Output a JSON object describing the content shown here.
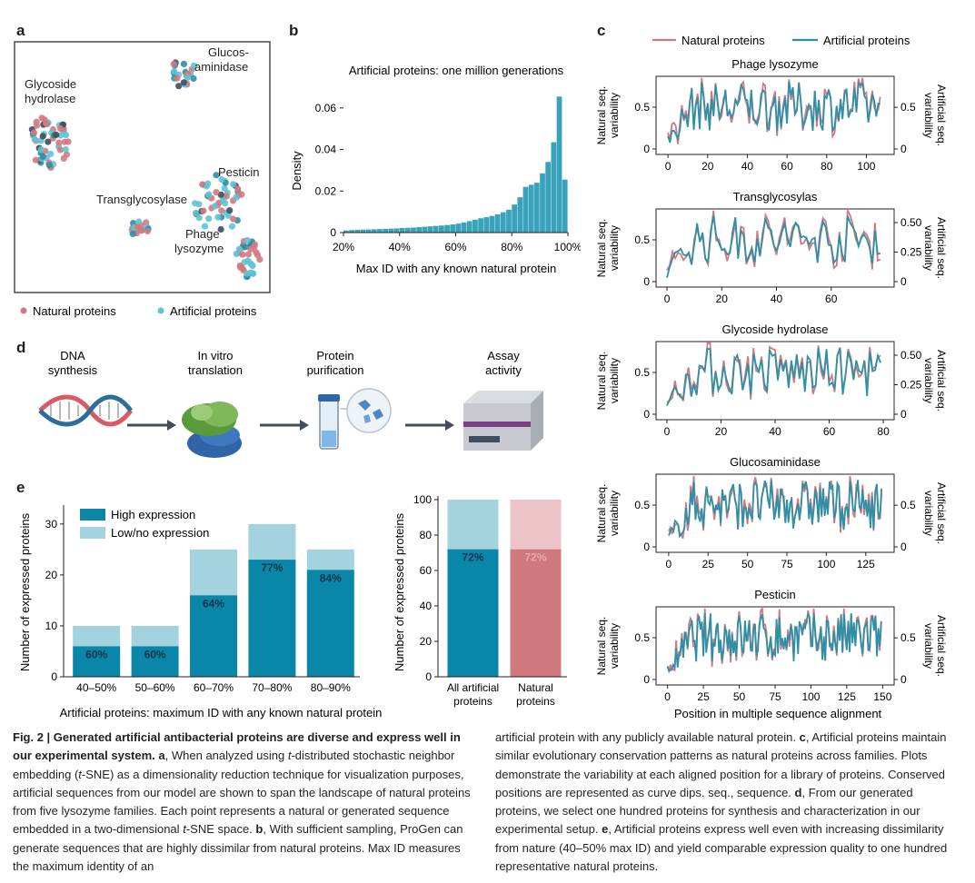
{
  "colors": {
    "natural": "#d07a80",
    "artificial": "#2f8fa6",
    "artificial_light": "#5fc3d3",
    "high": "#0a86a8",
    "low": "#a3d3df",
    "nat_high": "#d07a7f",
    "nat_low": "#ecc3c6",
    "dark": "#3f4d5e",
    "hist": "#3aa3bc"
  },
  "panels": {
    "a": "a",
    "b": "b",
    "c": "c",
    "d": "d",
    "e": "e"
  },
  "panel_a": {
    "clusters": [
      "Glucos-\naminidase",
      "Glycoside\nhydrolase",
      "Pesticin",
      "Transglycosylase",
      "Phage\nlysozyme"
    ],
    "legend_natural": "Natural proteins",
    "legend_artificial": "Artificial proteins"
  },
  "panel_d": {
    "steps": [
      {
        "label": "DNA\nsynthesis",
        "icon": "dna-icon"
      },
      {
        "label": "In vitro\ntranslation",
        "icon": "protein-icon"
      },
      {
        "label": "Protein\npurification",
        "icon": "tube-icon"
      },
      {
        "label": "Assay\nactivity",
        "icon": "plate-reader-icon"
      }
    ]
  },
  "chart_data": [
    {
      "id": "b",
      "type": "bar",
      "title": "Artificial proteins: one million generations",
      "xlabel": "Max ID with any known natural protein",
      "ylabel": "Density",
      "xlim": [
        20,
        100
      ],
      "ylim": [
        0,
        0.07
      ],
      "xticks": [
        "20%",
        "40%",
        "60%",
        "80%",
        "100%"
      ],
      "yticks": [
        "0",
        "0.02",
        "0.04",
        "0.06"
      ],
      "bin_width": 2,
      "bin_starts": [
        20,
        22,
        24,
        26,
        28,
        30,
        32,
        34,
        36,
        38,
        40,
        42,
        44,
        46,
        48,
        50,
        52,
        54,
        56,
        58,
        60,
        62,
        64,
        66,
        68,
        70,
        72,
        74,
        76,
        78,
        80,
        82,
        84,
        86,
        88,
        90,
        92,
        94,
        96,
        98
      ],
      "values": [
        0.001,
        0.0012,
        0.0013,
        0.0014,
        0.0015,
        0.0016,
        0.0017,
        0.0018,
        0.0019,
        0.002,
        0.0022,
        0.0023,
        0.0024,
        0.0026,
        0.0028,
        0.003,
        0.0032,
        0.0034,
        0.0036,
        0.0039,
        0.0043,
        0.0048,
        0.0055,
        0.0062,
        0.0069,
        0.0074,
        0.008,
        0.0088,
        0.0098,
        0.011,
        0.0135,
        0.017,
        0.022,
        0.023,
        0.024,
        0.0285,
        0.034,
        0.0435,
        0.0655,
        0.0255
      ]
    },
    {
      "id": "e-left",
      "type": "bar",
      "stacked": true,
      "categories": [
        "40–50%",
        "50–60%",
        "60–70%",
        "70–80%",
        "80–90%"
      ],
      "series": [
        {
          "name": "High expression",
          "values": [
            6,
            6,
            16,
            23,
            21
          ]
        },
        {
          "name": "Low/no expression",
          "values": [
            4,
            4,
            9,
            7,
            4
          ]
        }
      ],
      "labels": [
        "60%",
        "60%",
        "64%",
        "77%",
        "84%"
      ],
      "xlabel": "Artificial proteins: maximum ID with any known natural protein",
      "ylabel": "Number of expressed proteins",
      "ylim": [
        0,
        33
      ],
      "yticks": [
        "0",
        "10",
        "20",
        "30"
      ]
    },
    {
      "id": "e-right",
      "type": "bar",
      "stacked": true,
      "categories": [
        "All artificial\nproteins",
        "Natural\nproteins"
      ],
      "series": [
        {
          "name": "High expression",
          "values": [
            72,
            72
          ]
        },
        {
          "name": "Low/no expression",
          "values": [
            28,
            28
          ]
        }
      ],
      "labels": [
        "72%",
        "72%"
      ],
      "ylabel": "Number of expressed proteins",
      "ylim": [
        0,
        100
      ],
      "yticks": [
        "0",
        "20",
        "40",
        "60",
        "80",
        "100"
      ]
    },
    {
      "id": "c",
      "type": "line",
      "legend": [
        "Natural proteins",
        "Artificial proteins"
      ],
      "xlabel": "Position in multiple sequence alignment",
      "ylabel_left": "Natural seq.\nvariability",
      "ylabel_right": "Artificial seq.\nvariability",
      "subplots": [
        {
          "title": "Phage lysozyme",
          "length": 108,
          "xlim": [
            -6,
            114
          ],
          "xticks": [
            "0",
            "20",
            "40",
            "60",
            "80",
            "100"
          ],
          "left_ticks": [
            "0",
            "0.5"
          ],
          "right_ticks": [
            "0",
            "0.5"
          ]
        },
        {
          "title": "Transglycosylas",
          "length": 79,
          "xlim": [
            -4,
            83
          ],
          "xticks": [
            "0",
            "20",
            "40",
            "60"
          ],
          "left_ticks": [
            "0",
            "0.5"
          ],
          "right_ticks": [
            "0",
            "0.25",
            "0.50"
          ]
        },
        {
          "title": "Glycoside hydrolase",
          "length": 80,
          "xlim": [
            -4,
            84
          ],
          "xticks": [
            "0",
            "20",
            "40",
            "60",
            "80"
          ],
          "left_ticks": [
            "0",
            "0.5"
          ],
          "right_ticks": [
            "0",
            "0.25",
            "0.50"
          ]
        },
        {
          "title": "Glucosaminidase",
          "length": 136,
          "xlim": [
            -8,
            143
          ],
          "xticks": [
            "0",
            "25",
            "50",
            "75",
            "100",
            "125"
          ],
          "left_ticks": [
            "0",
            "0.5"
          ],
          "right_ticks": [
            "0",
            "0.5"
          ]
        },
        {
          "title": "Pesticin",
          "length": 150,
          "xlim": [
            -8,
            158
          ],
          "xticks": [
            "0",
            "25",
            "50",
            "75",
            "100",
            "125",
            "150"
          ],
          "left_ticks": [
            "0",
            "0.5"
          ],
          "right_ticks": [
            "0",
            "0.5"
          ]
        }
      ]
    }
  ],
  "caption": {
    "fig_label": "Fig. 2 | Generated artificial antibacterial proteins are diverse and express well in our experimental system.",
    "a_letter": "a",
    "a_text_1": ", When analyzed using",
    "tsne_t": "t",
    "a_text_2": "-distributed stochastic neighbor embedding (",
    "tsne_t2": "t",
    "a_text_3": "-SNE) as a dimensionality reduction technique for visualization purposes, artificial sequences from our model are shown to span the landscape of natural proteins from five lysozyme families. Each point represents a natural or generated sequence embedded in a two-dimensional",
    "tsne_t3": "t",
    "a_text_4": "-SNE space.",
    "b_letter": "b",
    "b_text": ", With sufficient sampling, ProGen can generate sequences that are highly dissimilar from natural proteins. Max ID measures the maximum identity of an",
    "right_text_1": "artificial protein with any publicly available natural protein.",
    "c_letter": "c",
    "c_text": ", Artificial proteins maintain similar evolutionary conservation patterns as natural proteins across families. Plots demonstrate the variability at each aligned position for a library of proteins. Conserved positions are represented as curve dips. seq., sequence.",
    "d_letter": "d",
    "d_text": ", From our generated proteins, we select one hundred proteins for synthesis and characterization in our experimental setup.",
    "e_letter": "e",
    "e_text": ", Artificial proteins express well even with increasing dissimilarity from nature (40–50% max ID) and yield comparable expression quality to one hundred representative natural proteins."
  }
}
